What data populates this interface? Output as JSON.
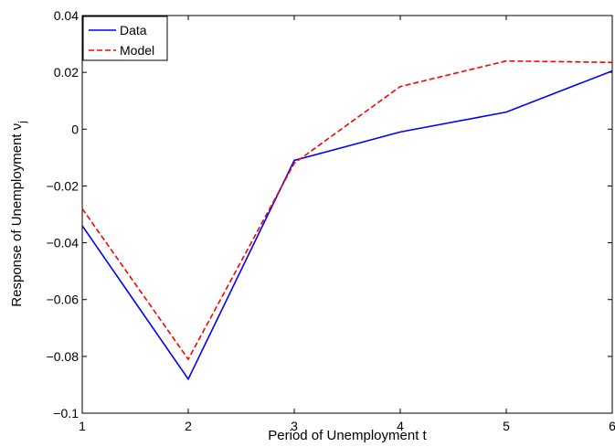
{
  "chart_data": {
    "type": "line",
    "xlabel": "Period of Unemployment t",
    "ylabel": "Response of Unemployment ν",
    "ylabel_subscript": "j",
    "xlim": [
      1,
      6
    ],
    "ylim": [
      -0.1,
      0.04
    ],
    "x": [
      1,
      2,
      3,
      4,
      5,
      6
    ],
    "x_ticks": [
      1,
      2,
      3,
      4,
      5,
      6
    ],
    "x_tick_labels": [
      "1",
      "2",
      "3",
      "4",
      "5",
      "6"
    ],
    "y_ticks": [
      -0.1,
      -0.08,
      -0.06,
      -0.04,
      -0.02,
      0,
      0.02,
      0.04
    ],
    "y_tick_labels": [
      "−0.1",
      "−0.08",
      "−0.06",
      "−0.04",
      "−0.02",
      "0",
      "0.02",
      "0.04"
    ],
    "grid": false,
    "legend_position": "top-left",
    "series": [
      {
        "name": "Data",
        "color": "#0000ff",
        "dash": "solid",
        "values": [
          -0.034,
          -0.088,
          -0.011,
          -0.001,
          0.006,
          0.0205
        ]
      },
      {
        "name": "Model",
        "color": "#ff0000",
        "dash": "dashed",
        "values": [
          -0.028,
          -0.081,
          -0.012,
          0.015,
          0.024,
          0.0235
        ]
      }
    ]
  }
}
